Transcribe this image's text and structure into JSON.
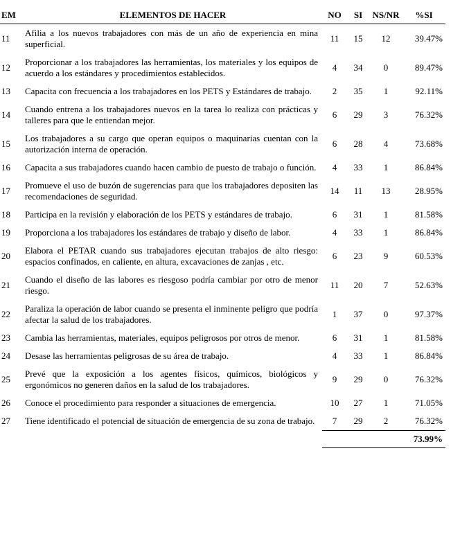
{
  "table": {
    "headers": {
      "item": "EM",
      "element": "ELEMENTOS DE HACER",
      "no": "NO",
      "si": "SI",
      "nsnr": "NS/NR",
      "pct": "%SI"
    },
    "rows": [
      {
        "item": "11",
        "element": "Afilia a los nuevos trabajadores con más de un año de experiencia en mina superficial.",
        "no": "11",
        "si": "15",
        "nsnr": "12",
        "pct": "39.47%"
      },
      {
        "item": "12",
        "element": "Proporcionar a los trabajadores las herramientas, los materiales y los equipos de acuerdo a los estándares y procedimientos establecidos.",
        "no": "4",
        "si": "34",
        "nsnr": "0",
        "pct": "89.47%"
      },
      {
        "item": "13",
        "element": "Capacita con frecuencia a los trabajadores en los PETS y Estándares de trabajo.",
        "no": "2",
        "si": "35",
        "nsnr": "1",
        "pct": "92.11%"
      },
      {
        "item": "14",
        "element": "Cuando entrena a los trabajadores nuevos en la tarea lo realiza con prácticas y talleres para que le entiendan mejor.",
        "no": "6",
        "si": "29",
        "nsnr": "3",
        "pct": "76.32%"
      },
      {
        "item": "15",
        "element": "Los trabajadores a su cargo que operan equipos o maquinarias cuentan con la autorización interna de operación.",
        "no": "6",
        "si": "28",
        "nsnr": "4",
        "pct": "73.68%"
      },
      {
        "item": "16",
        "element": "Capacita a sus trabajadores cuando hacen cambio de puesto de trabajo o función.",
        "no": "4",
        "si": "33",
        "nsnr": "1",
        "pct": "86.84%"
      },
      {
        "item": "17",
        "element": "Promueve el uso de buzón de sugerencias para que los trabajadores depositen las recomendaciones de seguridad.",
        "no": "14",
        "si": "11",
        "nsnr": "13",
        "pct": "28.95%"
      },
      {
        "item": "18",
        "element": "Participa en la revisión y elaboración de los PETS y estándares de trabajo.",
        "no": "6",
        "si": "31",
        "nsnr": "1",
        "pct": "81.58%"
      },
      {
        "item": "19",
        "element": "Proporciona a los trabajadores los estándares de trabajo y diseño de labor.",
        "no": "4",
        "si": "33",
        "nsnr": "1",
        "pct": "86.84%"
      },
      {
        "item": "20",
        "element": "Elabora el PETAR cuando sus trabajadores ejecutan trabajos de alto riesgo: espacios confinados, en caliente, en altura, excavaciones de zanjas , etc.",
        "no": "6",
        "si": "23",
        "nsnr": "9",
        "pct": "60.53%"
      },
      {
        "item": "21",
        "element": "Cuando el diseño de las labores es riesgoso podría cambiar por otro de menor riesgo.",
        "no": "11",
        "si": "20",
        "nsnr": "7",
        "pct": "52.63%"
      },
      {
        "item": "22",
        "element": "Paraliza la operación de labor cuando se presenta el inminente peligro que podría afectar la salud de los trabajadores.",
        "no": "1",
        "si": "37",
        "nsnr": "0",
        "pct": "97.37%"
      },
      {
        "item": "23",
        "element": "Cambia las herramientas, materiales, equipos peligrosos por otros de menor.",
        "no": "6",
        "si": "31",
        "nsnr": "1",
        "pct": "81.58%"
      },
      {
        "item": "24",
        "element": "Desase las herramientas peligrosas de su área de trabajo.",
        "no": "4",
        "si": "33",
        "nsnr": "1",
        "pct": "86.84%"
      },
      {
        "item": "25",
        "element": "Prevé que la exposición a los agentes físicos, químicos, biológicos y ergonómicos no generen daños en la salud de los trabajadores.",
        "no": "9",
        "si": "29",
        "nsnr": "0",
        "pct": "76.32%"
      },
      {
        "item": "26",
        "element": "Conoce el procedimiento para responder a situaciones de emergencia.",
        "no": "10",
        "si": "27",
        "nsnr": "1",
        "pct": "71.05%"
      },
      {
        "item": "27",
        "element": "Tiene identificado el potencial de situación de emergencia de su zona de trabajo.",
        "no": "7",
        "si": "29",
        "nsnr": "2",
        "pct": "76.32%"
      }
    ],
    "footer_total": "73.99%"
  }
}
